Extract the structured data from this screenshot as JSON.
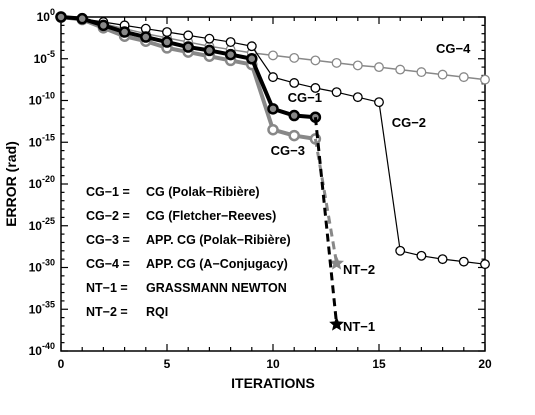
{
  "chart_data": {
    "type": "line",
    "xlabel": "ITERATIONS",
    "ylabel": "ERROR (rad)",
    "xlim": [
      0,
      20
    ],
    "ylim_exponent": [
      -40,
      0
    ],
    "y_scale": "log10",
    "x_ticks": [
      "0",
      "5",
      "10",
      "15",
      "20"
    ],
    "y_ticks": [
      {
        "base": "10",
        "exp": "0"
      },
      {
        "base": "10",
        "exp": "-5"
      },
      {
        "base": "10",
        "exp": "-10"
      },
      {
        "base": "10",
        "exp": "-15"
      },
      {
        "base": "10",
        "exp": "-20"
      },
      {
        "base": "10",
        "exp": "-25"
      },
      {
        "base": "10",
        "exp": "-30"
      },
      {
        "base": "10",
        "exp": "-35"
      },
      {
        "base": "10",
        "exp": "-40"
      }
    ],
    "series": [
      {
        "name": "CG-4",
        "label": "CG−4",
        "color": "#888888",
        "style": "open-circle",
        "marker_fill": "#ffffff",
        "line_width": 1.5,
        "x": [
          0,
          1,
          2,
          3,
          4,
          5,
          6,
          7,
          8,
          9,
          10,
          11,
          12,
          13,
          14,
          15,
          16,
          17,
          18,
          19,
          20
        ],
        "log10_y": [
          0,
          -0.2,
          -0.8,
          -1.4,
          -2.0,
          -2.5,
          -3.0,
          -3.5,
          -3.9,
          -4.3,
          -4.6,
          -4.9,
          -5.2,
          -5.5,
          -5.8,
          -6.0,
          -6.3,
          -6.6,
          -6.9,
          -7.2,
          -7.5
        ]
      },
      {
        "name": "CG-2",
        "label": "CG−2",
        "color": "#000000",
        "style": "open-circle",
        "marker_fill": "#ffffff",
        "line_width": 1.2,
        "x": [
          0,
          1,
          2,
          3,
          4,
          5,
          6,
          7,
          8,
          9,
          10,
          11,
          12,
          13,
          14,
          15,
          16,
          17,
          18,
          19,
          20
        ],
        "log10_y": [
          0,
          -0.2,
          -0.6,
          -1.0,
          -1.4,
          -1.8,
          -2.2,
          -2.6,
          -3.0,
          -3.5,
          -7.2,
          -7.9,
          -8.5,
          -9.0,
          -9.6,
          -10.2,
          -28.0,
          -28.6,
          -29.0,
          -29.3,
          -29.6
        ]
      },
      {
        "name": "CG-3",
        "label": "CG−3",
        "color": "#888888",
        "style": "thick-circle",
        "marker_fill": "#ffffff",
        "line_width": 4,
        "x": [
          0,
          1,
          2,
          3,
          4,
          5,
          6,
          7,
          8,
          9,
          10,
          11,
          12
        ],
        "log10_y": [
          0,
          -0.3,
          -1.3,
          -2.3,
          -2.9,
          -3.7,
          -4.2,
          -4.7,
          -5.2,
          -5.7,
          -13.5,
          -14.2,
          -14.6
        ]
      },
      {
        "name": "CG-1",
        "label": "CG−1",
        "color": "#000000",
        "style": "thick-circle",
        "marker_fill": "#888888",
        "line_width": 4,
        "x": [
          0,
          1,
          2,
          3,
          4,
          5,
          6,
          7,
          8,
          9,
          10,
          11,
          12
        ],
        "log10_y": [
          0,
          -0.2,
          -1.0,
          -1.8,
          -2.4,
          -3.0,
          -3.6,
          -4.0,
          -4.5,
          -5.0,
          -11.0,
          -11.8,
          -12.0
        ]
      },
      {
        "name": "NT-2",
        "label": "NT−2",
        "color": "#888888",
        "style": "star",
        "marker_fill": "#888888",
        "line_width": 3,
        "x": [
          12,
          13
        ],
        "log10_y": [
          -14.6,
          -29.5
        ]
      },
      {
        "name": "NT-1",
        "label": "NT−1",
        "color": "#000000",
        "style": "star",
        "marker_fill": "#000000",
        "line_width": 3,
        "x": [
          12,
          13
        ],
        "log10_y": [
          -12.0,
          -36.8
        ]
      }
    ],
    "legend": [
      {
        "key": "CG−1 =",
        "desc": "CG (Polak−Ribière)"
      },
      {
        "key": "CG−2 =",
        "desc": "CG (Fletcher−Reeves)"
      },
      {
        "key": "CG−3 =",
        "desc": "APP. CG (Polak−Ribière)"
      },
      {
        "key": "CG−4 =",
        "desc": "APP. CG (A−Conjugacy)"
      },
      {
        "key": "NT−1 =",
        "desc": "GRASSMANN NEWTON"
      },
      {
        "key": "NT−2 =",
        "desc": "RQI"
      }
    ],
    "legend_position": "lower-left",
    "grid": false
  }
}
